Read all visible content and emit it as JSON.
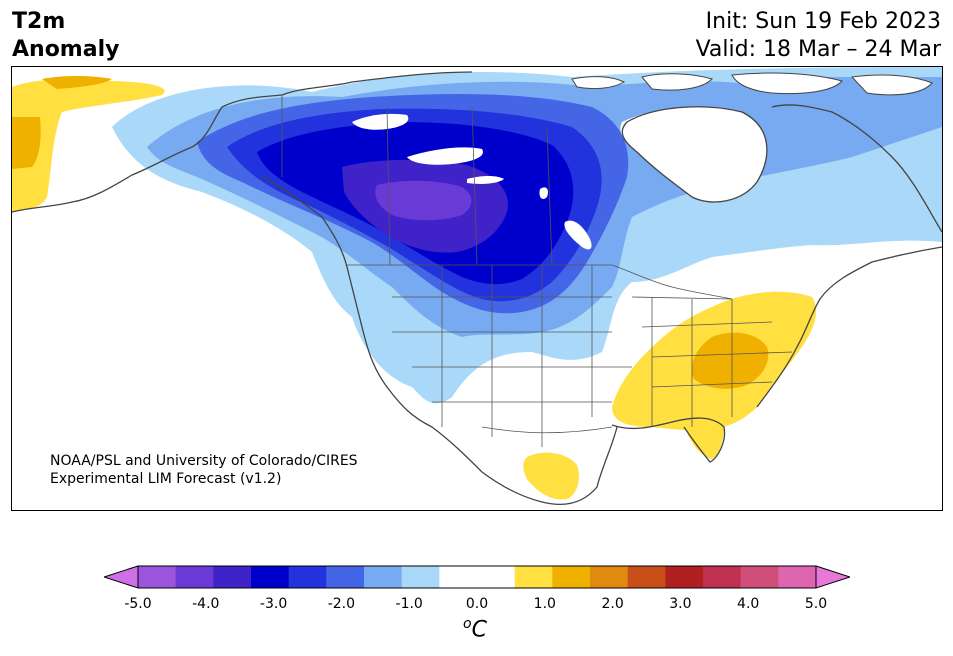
{
  "title": {
    "left_line1": "T2m",
    "left_line2": "Anomaly",
    "right_line1": "Init: Sun 19 Feb 2023",
    "right_line2": "Valid: 18 Mar – 24 Mar"
  },
  "credit": {
    "line1": "NOAA/PSL and University of Colorado/CIRES",
    "line2": "Experimental LIM Forecast (v1.2)"
  },
  "colorbar": {
    "units_base": "C",
    "units_sup": "o",
    "ticks": [
      "-5.0",
      "-4.0",
      "-3.0",
      "-2.0",
      "-1.0",
      "0.0",
      "1.0",
      "2.0",
      "3.0",
      "4.0",
      "5.0"
    ],
    "colors": [
      "#d070e8",
      "#9b55dc",
      "#6a3ad6",
      "#3f22c8",
      "#0000cc",
      "#2233dd",
      "#4466e6",
      "#77aaf0",
      "#aad8f8",
      "#ffffff",
      "#ffffff",
      "#ffe040",
      "#f0b000",
      "#e08a10",
      "#c85018",
      "#b02020",
      "#c03050",
      "#d04e7a",
      "#de66b0",
      "#e878d8"
    ]
  },
  "legend_colors": {
    "land_outline": "#444444",
    "water": "#ffffff"
  }
}
